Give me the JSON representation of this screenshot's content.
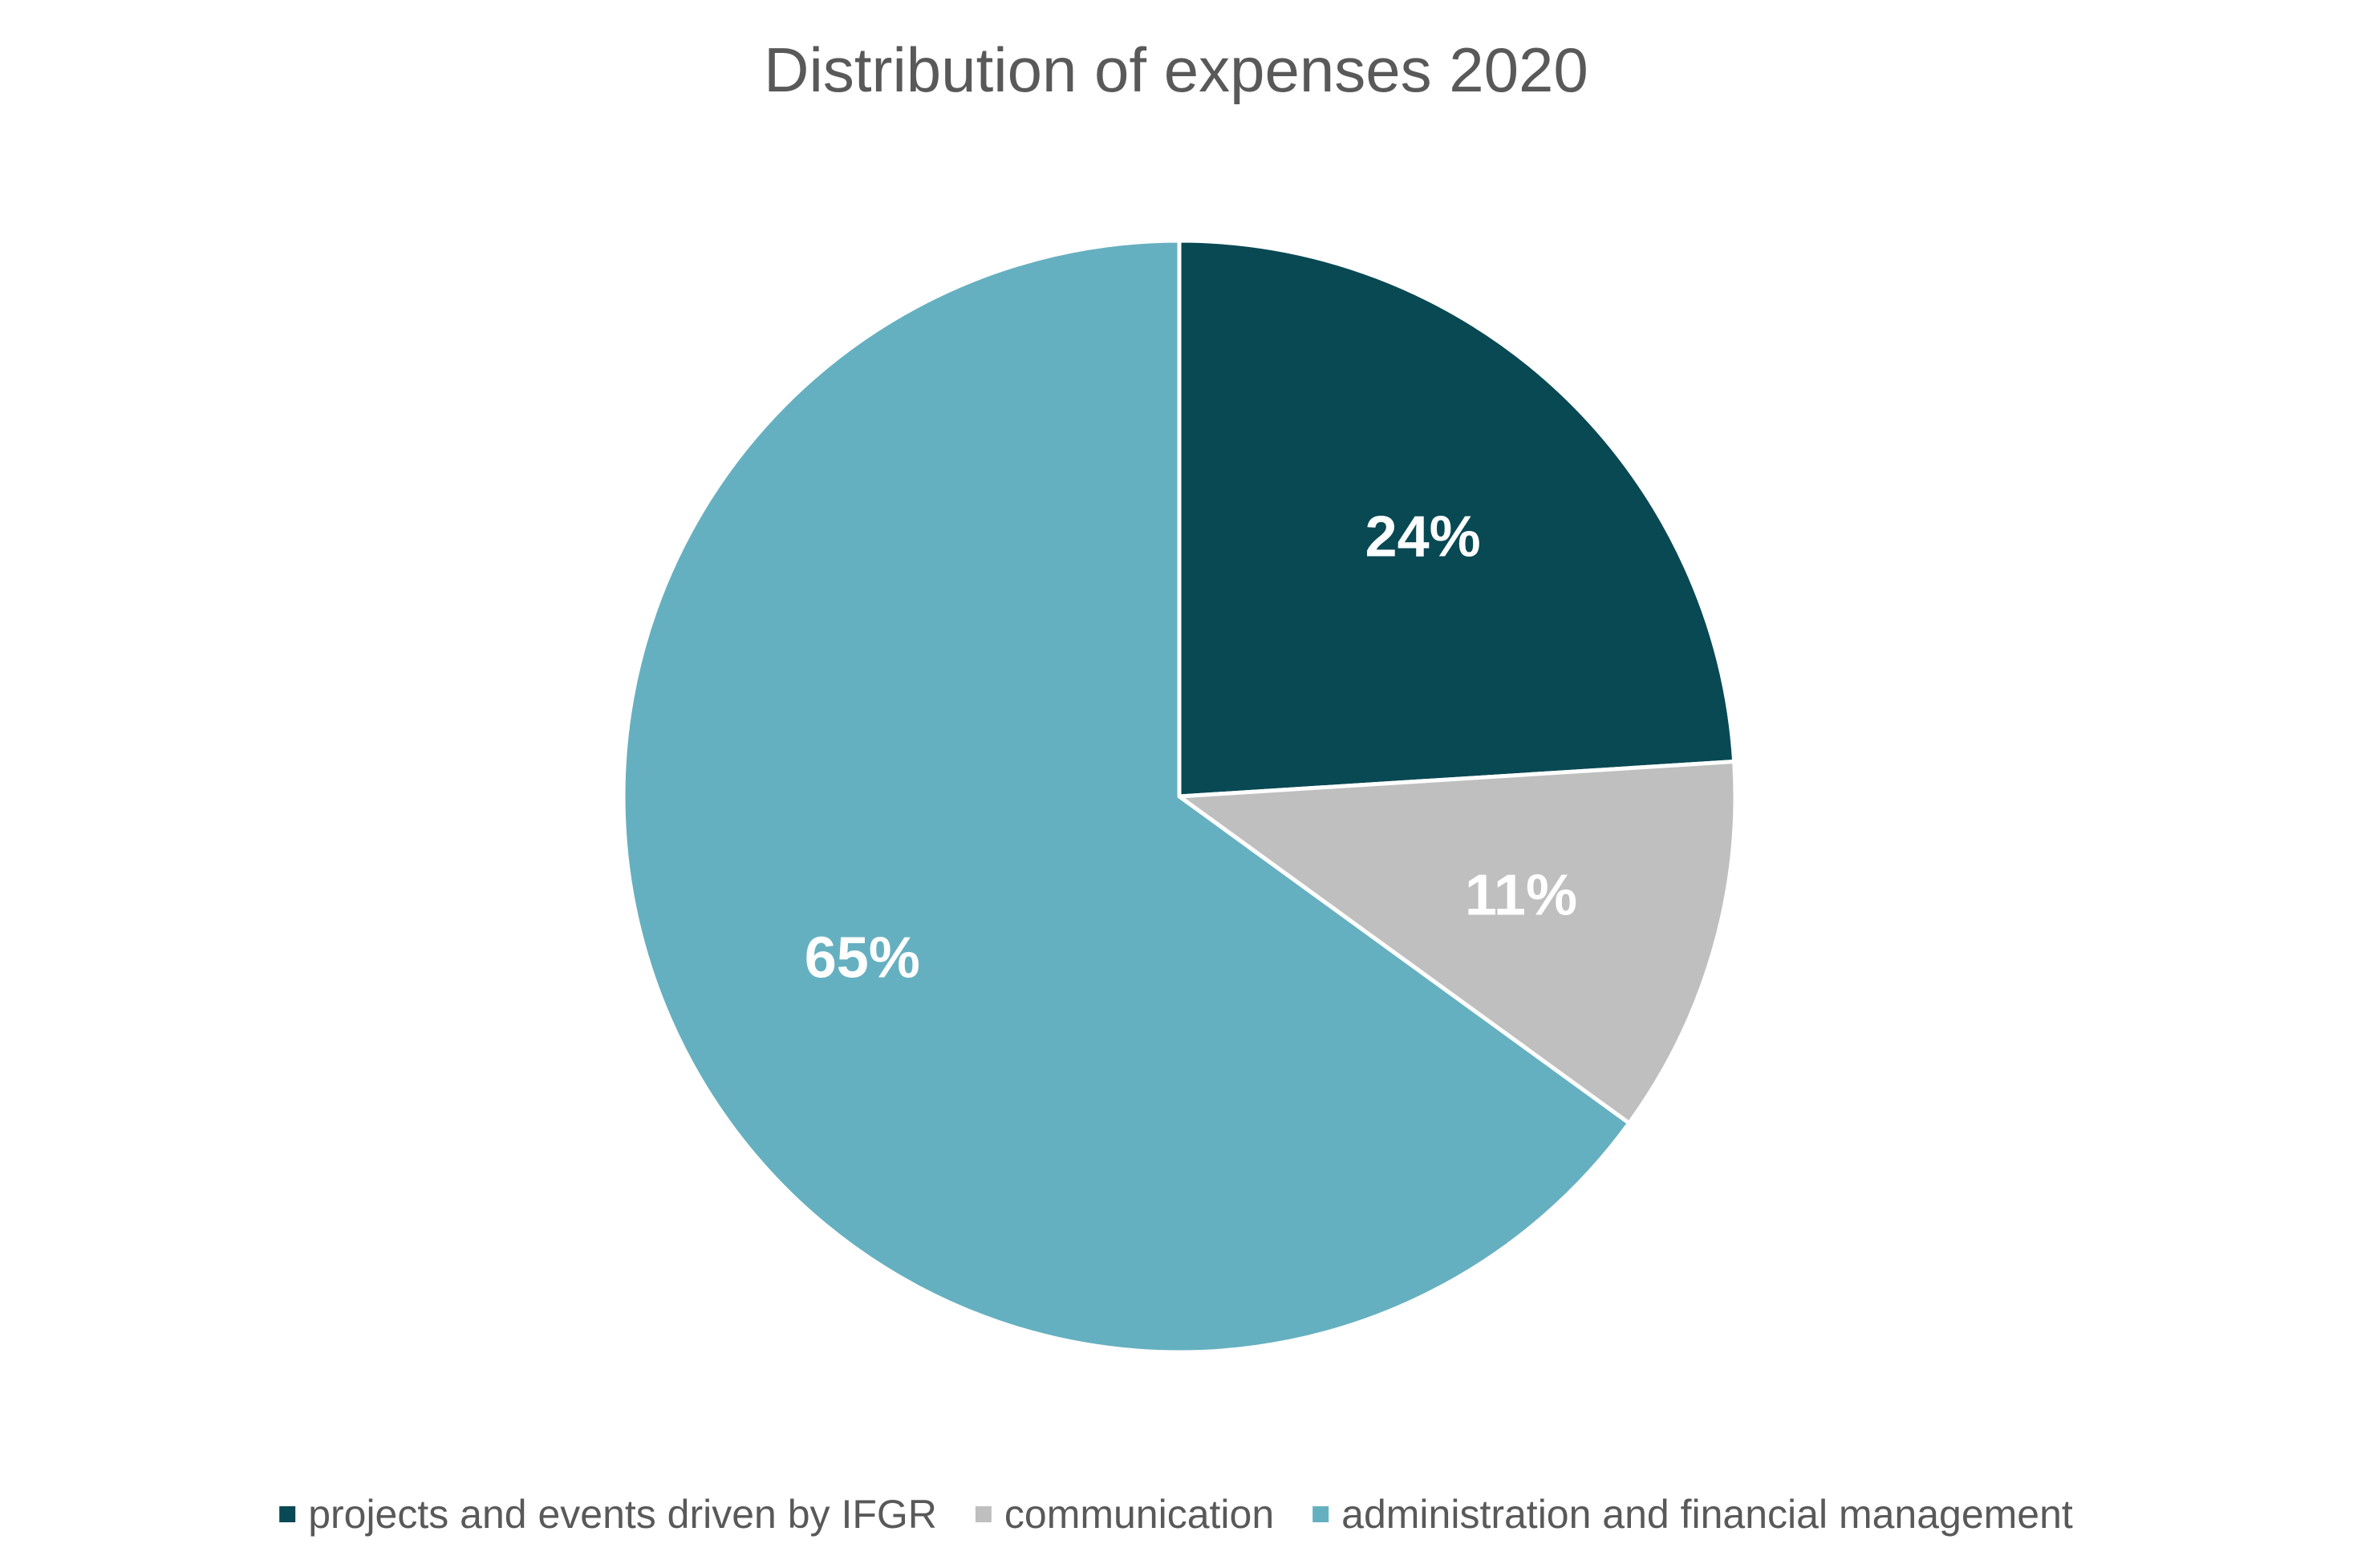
{
  "chart_data": {
    "type": "pie",
    "title": "Distribution of expenses 2020",
    "categories": [
      "projects and events driven by IFGR",
      "communication",
      "administration and financial management"
    ],
    "values": [
      24,
      11,
      65
    ],
    "data_labels": [
      "24%",
      "11%",
      "65%"
    ],
    "colors": [
      "#084954",
      "#bfbfbf",
      "#65b0c0"
    ],
    "start_angle_deg": 0,
    "direction": "clockwise",
    "legend_position": "bottom"
  }
}
